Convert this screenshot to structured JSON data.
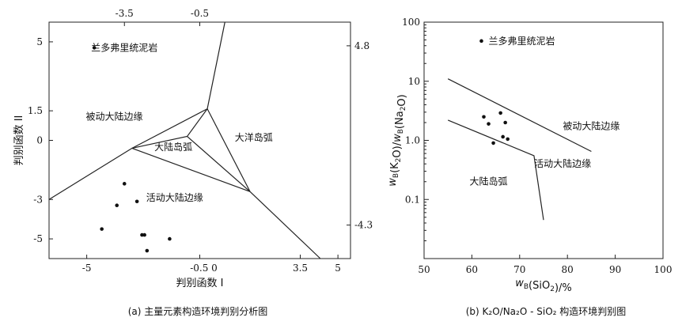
{
  "chart_data": [
    {
      "type": "scatter",
      "caption": "(a) 主量元素构造环境判别分析图",
      "xlabel": "判别函数 I",
      "ylabel": "判别函数 II",
      "xlim": [
        -6.5,
        5.5
      ],
      "ylim": [
        -6,
        6
      ],
      "x_ticks": [
        -5,
        -0.5,
        3.5,
        5
      ],
      "x_tick_labels": [
        "-5",
        "-0.5 0",
        "3.5",
        "5"
      ],
      "top_ticks": [
        -3.5,
        -0.5
      ],
      "top_tick_labels": [
        "-3.5",
        "-0.5"
      ],
      "y_ticks": [
        5,
        1.5,
        0,
        -3,
        -5
      ],
      "y_tick_labels": [
        "5",
        "1.5",
        "0",
        "-3",
        "-5"
      ],
      "right_ticks": [
        4.8,
        -4.3
      ],
      "right_tick_labels": [
        "4.8",
        "-4.3"
      ],
      "boundaries": [
        [
          [
            -6.5,
            -3
          ],
          [
            -3.2,
            -0.4
          ],
          [
            -0.2,
            1.6
          ],
          [
            0.5,
            6
          ]
        ],
        [
          [
            -0.2,
            1.6
          ],
          [
            -1.0,
            0.2
          ],
          [
            -3.2,
            -0.4
          ]
        ],
        [
          [
            -0.2,
            1.6
          ],
          [
            1.5,
            -2.6
          ]
        ],
        [
          [
            -1.0,
            0.2
          ],
          [
            1.5,
            -2.6
          ]
        ],
        [
          [
            -3.2,
            -0.4
          ],
          [
            1.5,
            -2.6
          ]
        ],
        [
          [
            1.5,
            -2.6
          ],
          [
            4.3,
            -6
          ]
        ]
      ],
      "regions": [
        {
          "label": "被动大陆边缘",
          "x": -3.9,
          "y": 1.2
        },
        {
          "label": "大洋岛弧",
          "x": 1.65,
          "y": 0.15
        },
        {
          "label": "大陆岛弧",
          "x": -1.55,
          "y": -0.35
        },
        {
          "label": "活动大陆边缘",
          "x": -1.5,
          "y": -2.9
        },
        {
          "label": "兰多弗里统泥岩",
          "x": -3.5,
          "y": 4.7
        }
      ],
      "series": [
        {
          "x": [
            -4.7,
            -3.5,
            -3.8,
            -3.0,
            -4.4,
            -2.8,
            -2.6,
            -1.7,
            -2.7
          ],
          "y": [
            4.7,
            -2.2,
            -3.3,
            -3.1,
            -4.5,
            -4.8,
            -5.6,
            -5.0,
            -4.8
          ]
        }
      ]
    },
    {
      "type": "scatter",
      "caption": "(b) K₂O/Na₂O - SiO₂ 构造环境判别图",
      "xlabel": "wB(SiO2)/%",
      "ylabel": "wB(K2O)/wB(Na2O)",
      "xlim": [
        50,
        100
      ],
      "ylim": [
        0.01,
        100
      ],
      "yscale": "log",
      "x_ticks": [
        50,
        60,
        70,
        80,
        90,
        100
      ],
      "y_ticks": [
        100,
        10,
        1.0,
        0.1
      ],
      "y_tick_labels": [
        "100",
        "10",
        "1.0",
        "0.1"
      ],
      "boundaries": [
        [
          [
            55,
            11
          ],
          [
            85,
            0.65
          ]
        ],
        [
          [
            55,
            2.2
          ],
          [
            73,
            0.55
          ],
          [
            75,
            0.045
          ]
        ]
      ],
      "regions": [
        {
          "label": "兰多弗里统泥岩",
          "x": 63.5,
          "y": 48
        },
        {
          "label": "被动大陆边缘",
          "x": 85,
          "y": 1.75
        },
        {
          "label": "活动大陆边缘",
          "x": 79,
          "y": 0.4
        },
        {
          "label": "大陆岛弧",
          "x": 63.5,
          "y": 0.2
        }
      ],
      "series": [
        {
          "x": [
            62,
            62.5,
            63.5,
            64.5,
            66,
            66.5,
            67,
            67.5
          ],
          "y": [
            48,
            2.5,
            1.9,
            0.9,
            2.9,
            1.15,
            2.0,
            1.05
          ]
        }
      ]
    }
  ]
}
